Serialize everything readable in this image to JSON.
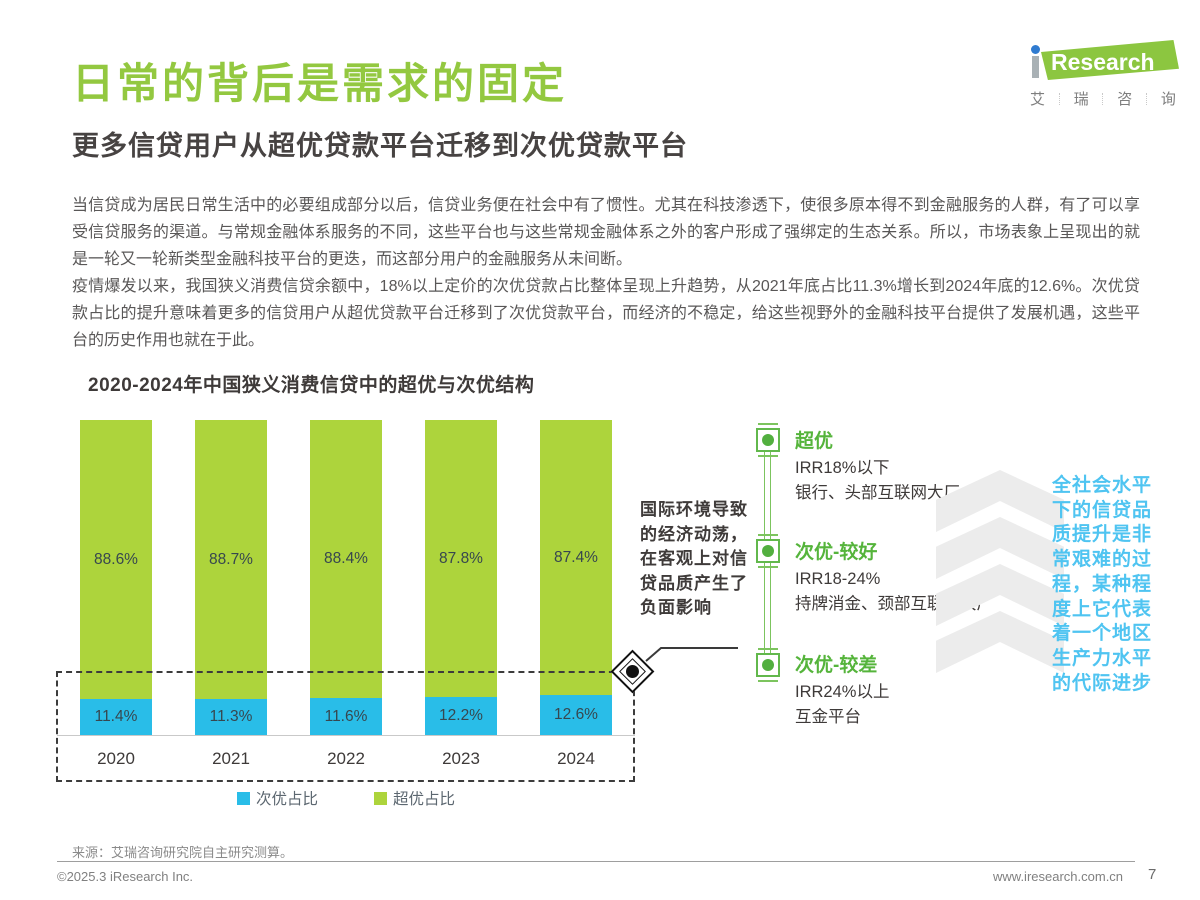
{
  "page": {
    "title": "日常的背后是需求的固定",
    "subtitle": "更多信贷用户从超优贷款平台迁移到次优贷款平台",
    "paragraphs": {
      "p1": "当信贷成为居民日常生活中的必要组成部分以后，信贷业务便在社会中有了惯性。尤其在科技渗透下，使很多原本得不到金融服务的人群，有了可以享受信贷服务的渠道。与常规金融体系服务的不同，这些平台也与这些常规金融体系之外的客户形成了强绑定的生态关系。所以，市场表象上呈现出的就是一轮又一轮新类型金融科技平台的更迭，而这部分用户的金融服务从未间断。",
      "p2": "疫情爆发以来，我国狭义消费信贷余额中，18%以上定价的次优贷款占比整体呈现上升趋势，从2021年底占比11.3%增长到2024年底的12.6%。次优贷款占比的提升意味着更多的信贷用户从超优贷款平台迁移到了次优贷款平台，而经济的不稳定，给这些视野外的金融科技平台提供了发展机遇，这些平台的历史作用也就在于此。"
    }
  },
  "logo": {
    "brand_i": "i",
    "brand": "Research",
    "chars": [
      "艾",
      "瑞",
      "咨",
      "询"
    ]
  },
  "chart_data": {
    "type": "bar",
    "stacked": true,
    "title": "2020-2024年中国狭义消费信贷中的超优与次优结构",
    "categories": [
      "2020",
      "2021",
      "2022",
      "2023",
      "2024"
    ],
    "series": [
      {
        "name": "次优占比",
        "color": "#29BDE8",
        "values": [
          11.4,
          11.3,
          11.6,
          12.2,
          12.6
        ]
      },
      {
        "name": "超优占比",
        "color": "#ADD43C",
        "values": [
          88.6,
          88.7,
          88.4,
          87.8,
          87.4
        ]
      }
    ],
    "value_suffix": "%",
    "ylim": [
      0,
      100
    ],
    "grid": false,
    "legend_position": "bottom"
  },
  "annotations": {
    "econ_note": "国际环境导致的经济动荡，在客观上对信贷品质产生了负面影响",
    "side_note": "全社会水平下的信贷品质提升是非常艰难的过程，某种程度上它代表着一个地区生产力水平的代际进步"
  },
  "tiers": [
    {
      "label": "超优",
      "line1": "IRR18%以下",
      "line2": "银行、头部互联网大厂"
    },
    {
      "label": "次优-较好",
      "line1": "IRR18-24%",
      "line2": "持牌消金、颈部互联网大厂"
    },
    {
      "label": "次优-较差",
      "line1": "IRR24%以上",
      "line2": "互金平台"
    }
  ],
  "footer": {
    "source": "来源：艾瑞咨询研究院自主研究测算。",
    "copyright": "©2025.3 iResearch Inc.",
    "website": "www.iresearch.com.cn",
    "page_number": "7"
  },
  "colors": {
    "title_green": "#93C840",
    "bar_green": "#ADD43C",
    "bar_blue": "#29BDE8",
    "tier_green": "#55B43B",
    "side_note_blue": "#4FC4F1",
    "logo_green": "#8CC640",
    "logo_dot_blue": "#2F7BD0"
  }
}
